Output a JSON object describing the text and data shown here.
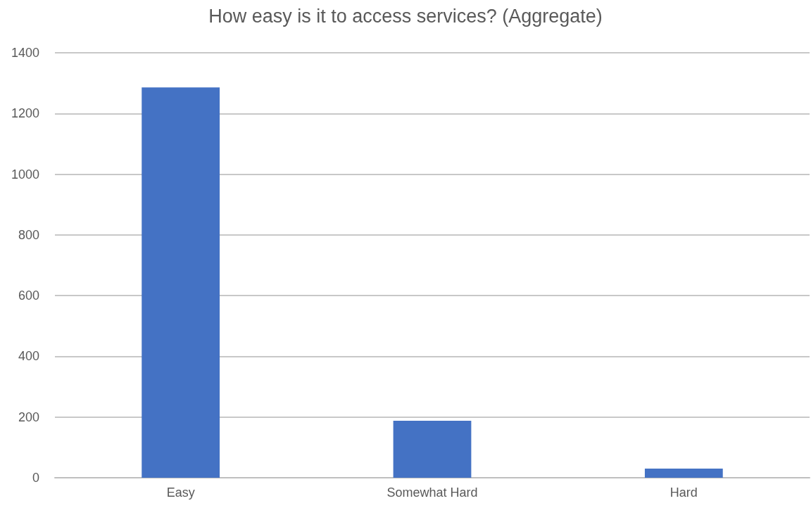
{
  "chart_data": {
    "type": "bar",
    "title": "How easy is it to access services? (Aggregate)",
    "categories": [
      "Easy",
      "Somewhat Hard",
      "Hard"
    ],
    "series": [
      {
        "color": "#4472c4",
        "values": [
          1286,
          188,
          30
        ]
      }
    ],
    "ylim": [
      0,
      1400
    ],
    "yticks": [
      0,
      200,
      400,
      600,
      800,
      1000,
      1200,
      1400
    ],
    "grid": "y"
  }
}
